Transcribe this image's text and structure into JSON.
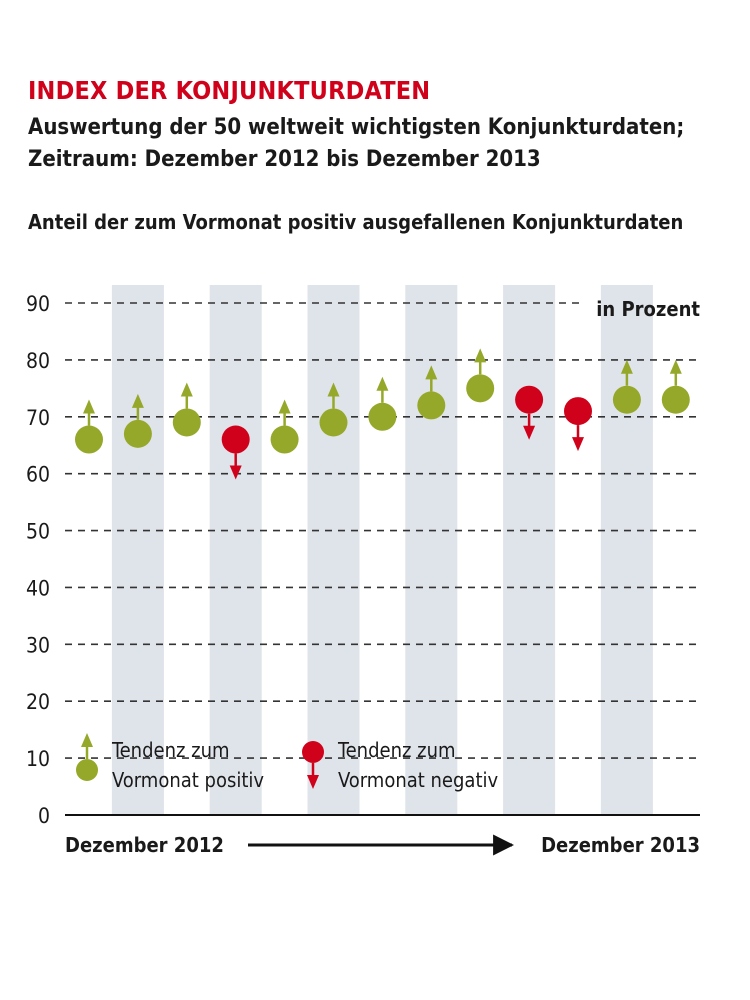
{
  "header": {
    "title": "INDEX DER KONJUNKTURDATEN",
    "subtitle_line1": "Auswertung der 50 weltweit wichtigsten Konjunkturdaten;",
    "subtitle_line2": "Zeitraum: Dezember 2012 bis Dezember 2013",
    "intro": "Anteil der zum Vormonat positiv ausgefallenen Konjunkturdaten"
  },
  "chart_data": {
    "type": "scatter",
    "title": "INDEX DER KONJUNKTURDATEN",
    "subtitle": "Auswertung der 50 weltweit wichtigsten Konjunkturdaten; Zeitraum: Dezember 2012 bis Dezember 2013",
    "ylabel": "Anteil der zum Vormonat positiv ausgefallenen Konjunkturdaten",
    "unit": "in Prozent",
    "ylim": [
      0,
      90
    ],
    "yticks": [
      0,
      10,
      20,
      30,
      40,
      50,
      60,
      70,
      80,
      90
    ],
    "grid": true,
    "x_start_label": "Dezember 2012",
    "x_end_label": "Dezember 2013",
    "values": [
      66,
      67,
      69,
      66,
      66,
      69,
      70,
      72,
      75,
      73,
      71,
      73,
      73
    ],
    "trend": [
      "up",
      "up",
      "up",
      "down",
      "up",
      "up",
      "up",
      "up",
      "up",
      "down",
      "down",
      "up",
      "up"
    ],
    "legend": [
      {
        "label_line1": "Tendenz zum",
        "label_line2": "Vormonat positiv",
        "trend": "up"
      },
      {
        "label_line1": "Tendenz zum",
        "label_line2": "Vormonat negativ",
        "trend": "down"
      }
    ],
    "colors": {
      "positive": "#96a82a",
      "negative": "#d0021b",
      "band": "#dfe3ea",
      "grid": "#333333"
    }
  }
}
